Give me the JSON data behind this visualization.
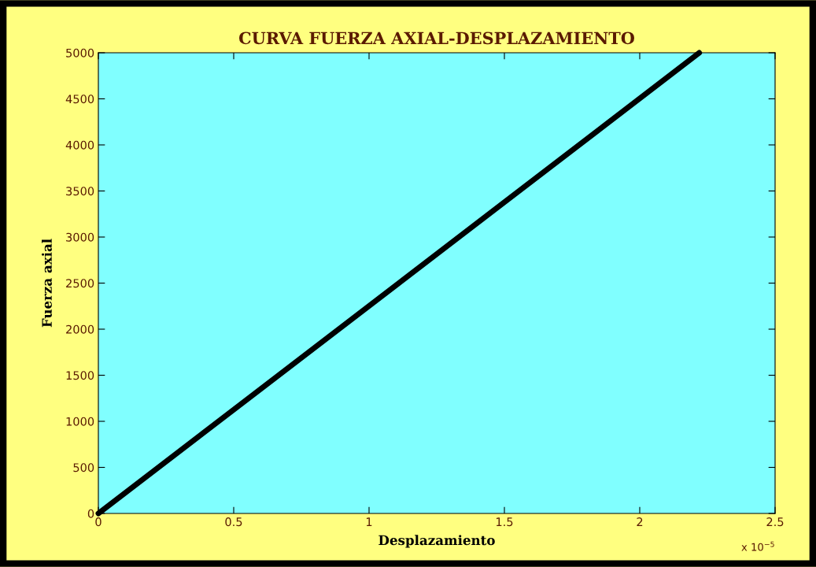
{
  "chart_data": {
    "type": "line",
    "title": "CURVA FUERZA AXIAL-DESPLAZAMIENTO",
    "xlabel": "Desplazamiento",
    "ylabel": "Fuerza axial",
    "x": [
      0,
      2.22
    ],
    "series": [
      {
        "color": "#000000",
        "values": [
          0,
          5000
        ]
      }
    ],
    "xlim": [
      0,
      2.5
    ],
    "ylim": [
      0,
      5000
    ],
    "xticks": [
      0,
      0.5,
      1,
      1.5,
      2,
      2.5
    ],
    "yticks": [
      0,
      500,
      1000,
      1500,
      2000,
      2500,
      3000,
      3500,
      4000,
      4500,
      5000
    ],
    "annotations": [
      "x 10$^{−5}$"
    ],
    "grid": false,
    "marker": "none",
    "line_style": "solid"
  }
}
